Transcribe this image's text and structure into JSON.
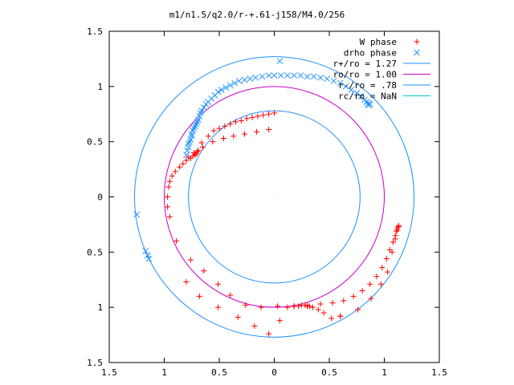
{
  "chart_data": {
    "type": "scatter",
    "title": "m1/n1.5/q2.0/r-+.61-j158/M4.0/256",
    "xlabel": "",
    "ylabel": "",
    "xlim": [
      -1.5,
      1.5
    ],
    "ylim": [
      -1.5,
      1.5
    ],
    "x_ticks": [
      -1.5,
      -1,
      -0.5,
      0,
      0.5,
      1,
      1.5
    ],
    "x_tick_labels": [
      "1.5",
      "1",
      "0.5",
      "0",
      "0.5",
      "1",
      "1.5"
    ],
    "y_ticks": [
      1.5,
      1,
      0.5,
      0,
      -0.5,
      -1,
      -1.5
    ],
    "y_tick_labels": [
      "1.5",
      "1",
      "0.5",
      "0",
      "0.5",
      "1",
      "1.5"
    ],
    "grid": false,
    "legend_position": "top-right",
    "series": [
      {
        "name": "W phase",
        "kind": "points",
        "marker": "plus",
        "color": "#ff0000",
        "x": [
          -0.78,
          -0.8,
          -0.83,
          -0.86,
          -0.9,
          -0.93,
          -0.95,
          -0.96,
          -0.97,
          -0.97,
          -0.95,
          -0.89,
          -0.76,
          -0.64,
          -0.51,
          -0.4,
          -0.26,
          -0.12,
          0.03,
          0.18,
          0.3,
          0.42,
          0.53,
          0.63,
          0.72,
          0.8,
          0.87,
          0.93,
          0.98,
          1.02,
          1.05,
          1.08,
          1.1,
          1.11,
          1.12,
          1.13,
          1.13,
          1.12,
          1.1,
          1.07,
          1.03,
          0.97,
          0.88,
          0.76,
          0.6,
          0.6,
          0.52,
          0.45,
          0.4,
          0.35,
          0.32,
          0.3,
          0.28,
          0.25,
          0.22,
          0.18,
          0.12,
          0.05,
          -0.05,
          -0.18,
          -0.33,
          -0.51,
          -0.68,
          -0.8,
          -0.73,
          -0.65,
          -0.56,
          -0.46,
          -0.37,
          -0.27,
          -0.16,
          -0.05,
          -0.66,
          -0.6,
          -0.55,
          -0.5,
          -0.45,
          -0.4,
          -0.35,
          -0.3,
          -0.25,
          -0.2,
          -0.15,
          -0.1,
          -0.05,
          0.0,
          -0.69,
          -0.7,
          -0.71,
          -0.72,
          -0.74,
          -0.76
        ],
        "y": [
          0.36,
          0.33,
          0.3,
          0.27,
          0.23,
          0.19,
          0.14,
          0.09,
          0.0,
          -0.09,
          -0.18,
          -0.4,
          -0.57,
          -0.67,
          -0.79,
          -0.89,
          -0.98,
          -1.0,
          -0.99,
          -0.99,
          -0.98,
          -0.97,
          -0.96,
          -0.94,
          -0.9,
          -0.85,
          -0.79,
          -0.72,
          -0.64,
          -0.56,
          -0.48,
          -0.41,
          -0.35,
          -0.31,
          -0.28,
          -0.26,
          -0.27,
          -0.3,
          -0.38,
          -0.5,
          -0.68,
          -0.79,
          -0.92,
          -1.02,
          -1.08,
          -1.08,
          -1.1,
          -1.05,
          -1.02,
          -1.0,
          -0.99,
          -0.99,
          -0.98,
          -0.98,
          -0.99,
          -0.99,
          -1.0,
          -1.12,
          -1.24,
          -1.17,
          -1.09,
          -1.0,
          -0.9,
          -0.77,
          0.4,
          0.45,
          0.5,
          0.53,
          0.55,
          0.57,
          0.59,
          0.61,
          0.49,
          0.55,
          0.6,
          0.62,
          0.64,
          0.66,
          0.68,
          0.69,
          0.71,
          0.72,
          0.73,
          0.74,
          0.75,
          0.76,
          0.42,
          0.41,
          0.39,
          0.38,
          0.37,
          0.35
        ]
      },
      {
        "name": "drho phase",
        "kind": "points",
        "marker": "cross",
        "color": "#1e90ff",
        "x": [
          -0.8,
          -0.79,
          -0.78,
          -0.78,
          -0.77,
          -0.76,
          -0.75,
          -0.75,
          -0.74,
          -0.73,
          -0.72,
          -0.71,
          -0.7,
          -0.69,
          -0.68,
          -0.67,
          -0.66,
          -0.64,
          -0.62,
          -0.6,
          -0.57,
          -0.54,
          -0.51,
          -0.48,
          -0.44,
          -0.4,
          -0.36,
          -0.32,
          -0.27,
          -0.22,
          -0.17,
          -0.11,
          -0.05,
          0.0,
          0.06,
          0.12,
          0.18,
          0.24,
          0.3,
          0.36,
          0.42,
          0.48,
          0.54,
          0.6,
          0.65,
          0.7,
          0.75,
          0.79,
          0.82,
          0.84,
          0.86,
          0.87,
          0.86,
          0.85,
          0.05,
          -1.25,
          -1.17,
          -1.15,
          -1.14
        ],
        "y": [
          0.38,
          0.42,
          0.45,
          0.48,
          0.5,
          0.52,
          0.55,
          0.57,
          0.6,
          0.62,
          0.64,
          0.66,
          0.68,
          0.7,
          0.73,
          0.76,
          0.78,
          0.81,
          0.84,
          0.86,
          0.89,
          0.92,
          0.95,
          0.97,
          0.99,
          1.01,
          1.03,
          1.05,
          1.06,
          1.07,
          1.08,
          1.09,
          1.1,
          1.1,
          1.1,
          1.1,
          1.1,
          1.1,
          1.09,
          1.09,
          1.08,
          1.07,
          1.05,
          1.03,
          1.0,
          0.97,
          0.94,
          0.91,
          0.88,
          0.86,
          0.85,
          0.84,
          0.83,
          0.84,
          1.23,
          -0.16,
          -0.49,
          -0.53,
          -0.56
        ]
      },
      {
        "name": "r+/ro = 1.27",
        "kind": "circle",
        "radius": 1.27,
        "color": "#1e90ff"
      },
      {
        "name": "ro/ro = 1.00",
        "kind": "circle",
        "radius": 1.0,
        "color": "#cc00cc"
      },
      {
        "name": "r-/ro = .78",
        "kind": "circle",
        "radius": 0.78,
        "color": "#1e90ff"
      },
      {
        "name": "rc/ro = NaN",
        "kind": "circle",
        "radius": null,
        "color": "#00cccc"
      }
    ]
  }
}
